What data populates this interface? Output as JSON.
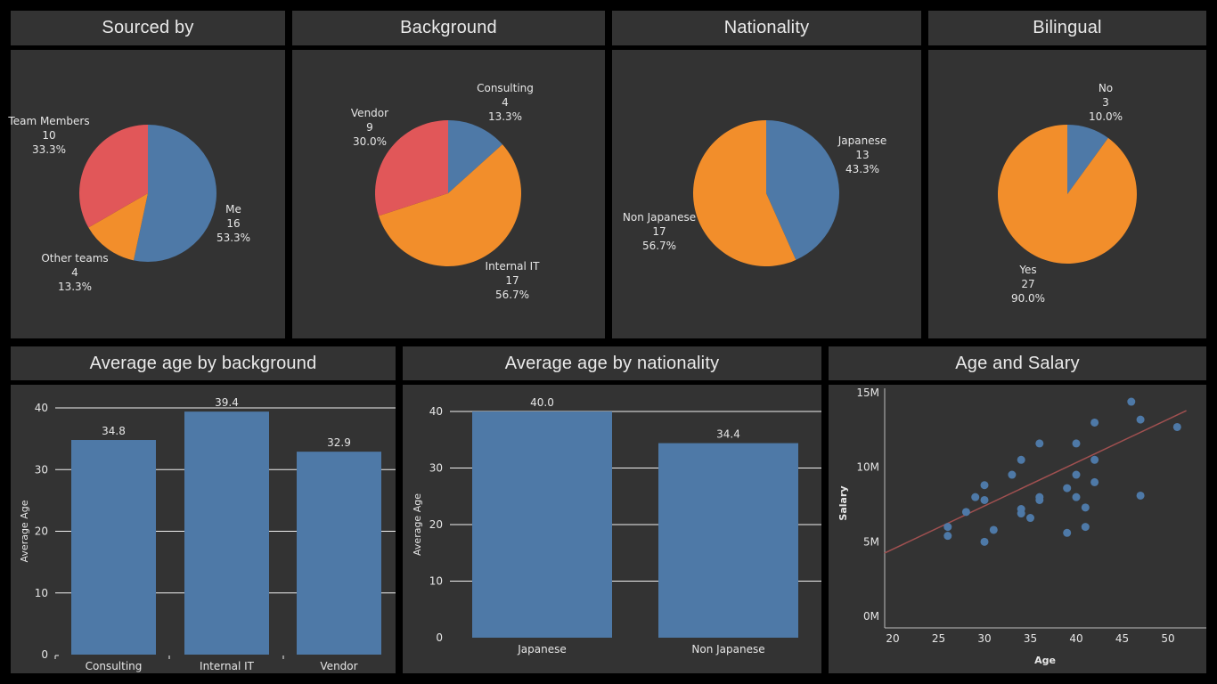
{
  "colors": {
    "blue": "#4e79a7",
    "orange": "#f28e2b",
    "red": "#e15759",
    "panel": "#333333",
    "trend": "#a05050"
  },
  "chart_data": [
    {
      "id": "sourced",
      "type": "pie",
      "title": "Sourced by",
      "slices": [
        {
          "label": "Me",
          "count": "16",
          "pct": "53.3%",
          "value": 16,
          "color": "blue"
        },
        {
          "label": "Other teams",
          "count": "4",
          "pct": "13.3%",
          "value": 4,
          "color": "orange"
        },
        {
          "label": "Team Members",
          "count": "10",
          "pct": "33.3%",
          "value": 10,
          "color": "red"
        }
      ]
    },
    {
      "id": "background",
      "type": "pie",
      "title": "Background",
      "slices": [
        {
          "label": "Consulting",
          "count": "4",
          "pct": "13.3%",
          "value": 4,
          "color": "blue"
        },
        {
          "label": "Internal IT",
          "count": "17",
          "pct": "56.7%",
          "value": 17,
          "color": "orange"
        },
        {
          "label": "Vendor",
          "count": "9",
          "pct": "30.0%",
          "value": 9,
          "color": "red"
        }
      ]
    },
    {
      "id": "nationality",
      "type": "pie",
      "title": "Nationality",
      "slices": [
        {
          "label": "Japanese",
          "count": "13",
          "pct": "43.3%",
          "value": 13,
          "color": "blue"
        },
        {
          "label": "Non Japanese",
          "count": "17",
          "pct": "56.7%",
          "value": 17,
          "color": "orange"
        }
      ]
    },
    {
      "id": "bilingual",
      "type": "pie",
      "title": "Bilingual",
      "slices": [
        {
          "label": "No",
          "count": "3",
          "pct": "10.0%",
          "value": 3,
          "color": "blue"
        },
        {
          "label": "Yes",
          "count": "27",
          "pct": "90.0%",
          "value": 27,
          "color": "orange"
        }
      ]
    },
    {
      "id": "age_bg",
      "type": "bar",
      "title": "Average age by background",
      "categories": [
        "Consulting",
        "Internal IT",
        "Vendor"
      ],
      "values": [
        34.8,
        39.4,
        32.9
      ],
      "value_labels": [
        "34.8",
        "39.4",
        "32.9"
      ],
      "ylabel": "Average Age",
      "ylim": [
        0,
        40
      ],
      "yticks": [
        "0",
        "10",
        "20",
        "30",
        "40"
      ]
    },
    {
      "id": "age_nat",
      "type": "bar",
      "title": "Average age by nationality",
      "categories": [
        "Japanese",
        "Non Japanese"
      ],
      "values": [
        40.0,
        34.4
      ],
      "value_labels": [
        "40.0",
        "34.4"
      ],
      "ylabel": "Average Age",
      "ylim": [
        0,
        40
      ],
      "yticks": [
        "0",
        "10",
        "20",
        "30",
        "40"
      ]
    },
    {
      "id": "age_salary",
      "type": "scatter",
      "title": "Age and Salary",
      "xlabel": "Age",
      "ylabel": "Salary",
      "xlim": [
        20,
        52
      ],
      "ylim": [
        0,
        15
      ],
      "xticks": [
        "20",
        "25",
        "30",
        "35",
        "40",
        "45",
        "50"
      ],
      "yticks": [
        "0M",
        "5M",
        "10M",
        "15M"
      ],
      "points": [
        [
          26,
          6.0
        ],
        [
          26,
          5.4
        ],
        [
          28,
          7.0
        ],
        [
          29,
          8.0
        ],
        [
          30,
          8.8
        ],
        [
          30,
          7.8
        ],
        [
          30,
          5.0
        ],
        [
          31,
          5.8
        ],
        [
          33,
          9.5
        ],
        [
          34,
          10.5
        ],
        [
          34,
          7.2
        ],
        [
          34,
          6.9
        ],
        [
          35,
          6.6
        ],
        [
          36,
          11.6
        ],
        [
          36,
          8.0
        ],
        [
          36,
          7.8
        ],
        [
          39,
          5.6
        ],
        [
          39,
          8.6
        ],
        [
          40,
          11.6
        ],
        [
          40,
          9.5
        ],
        [
          40,
          8.0
        ],
        [
          41,
          7.3
        ],
        [
          41,
          6.0
        ],
        [
          42,
          13.0
        ],
        [
          42,
          10.5
        ],
        [
          42,
          9.0
        ],
        [
          46,
          14.4
        ],
        [
          47,
          13.2
        ],
        [
          47,
          8.1
        ],
        [
          51,
          12.7
        ]
      ],
      "trend": [
        [
          20,
          4.5
        ],
        [
          52,
          13.8
        ]
      ]
    }
  ]
}
